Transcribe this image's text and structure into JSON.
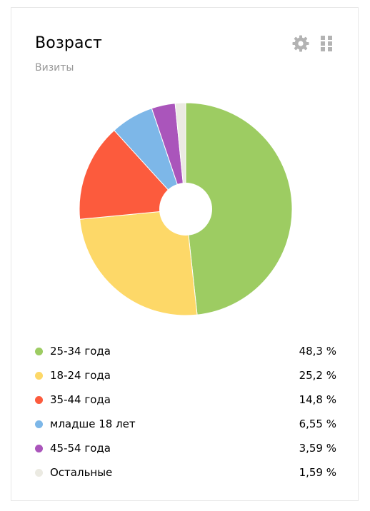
{
  "widget": {
    "title": "Возраст",
    "subtitle": "Визиты",
    "settings_icon": "gear-icon",
    "drag_icon": "drag-handle-icon"
  },
  "chart_data": {
    "type": "pie",
    "variant": "donut",
    "title": "Возраст",
    "subtitle": "Визиты",
    "categories": [
      "25-34 года",
      "18-24 года",
      "35-44 года",
      "младше 18 лет",
      "45-54 года",
      "Остальные"
    ],
    "values": [
      48.3,
      25.2,
      14.8,
      6.55,
      3.59,
      1.59
    ],
    "value_labels": [
      "48,3 %",
      "25,2 %",
      "14,8 %",
      "6,55 %",
      "3,59 %",
      "1,59 %"
    ],
    "colors": [
      "#9dcc62",
      "#fdd868",
      "#fc5b3d",
      "#7db7e8",
      "#aa55bb",
      "#ebeae2"
    ],
    "legend_position": "bottom"
  }
}
